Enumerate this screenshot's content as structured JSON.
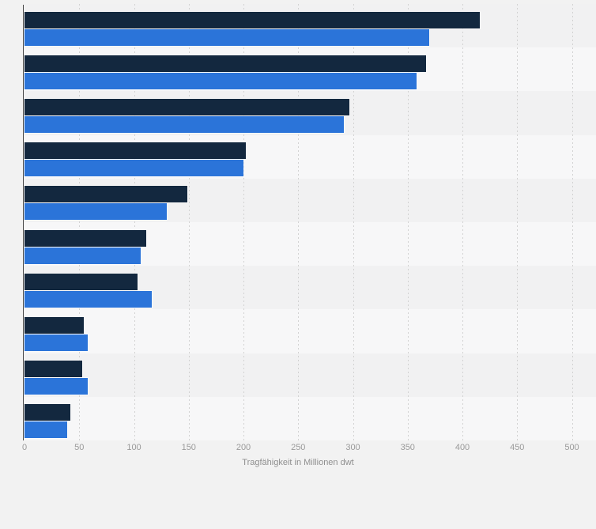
{
  "page": {
    "background_color": "#f2f2f2"
  },
  "axis": {
    "title": "Tragfähigkeit in Millionen dwt",
    "tick_labels": [
      "0",
      "50",
      "100",
      "150",
      "200",
      "250",
      "300",
      "350",
      "400",
      "450",
      "500"
    ]
  },
  "chart_data": {
    "type": "bar",
    "orientation": "horizontal",
    "title": "",
    "xlabel": "Tragfähigkeit in Millionen dwt",
    "ylabel": "",
    "xlim": [
      0,
      500
    ],
    "x_ticks": [
      0,
      50,
      100,
      150,
      200,
      250,
      300,
      350,
      400,
      450,
      500
    ],
    "grid": "vertical-dotted-every-50",
    "legend": "none",
    "n_rows": 10,
    "category_labels_visible": false,
    "series": [
      {
        "name": "series-dark-navy",
        "color": "#13283f",
        "values": [
          416,
          367,
          297,
          202,
          149,
          111,
          103,
          54,
          53,
          42
        ]
      },
      {
        "name": "series-blue",
        "color": "#2b74d9",
        "values": [
          370,
          358,
          292,
          200,
          130,
          106,
          116,
          58,
          58,
          39
        ]
      }
    ],
    "style": {
      "band_odd_color": "#f1f1f2",
      "band_even_color": "#f7f7f8",
      "gridline_color": "#d2d2d2",
      "axis_line_color": "#464646",
      "label_color": "#9a9a9a"
    }
  }
}
